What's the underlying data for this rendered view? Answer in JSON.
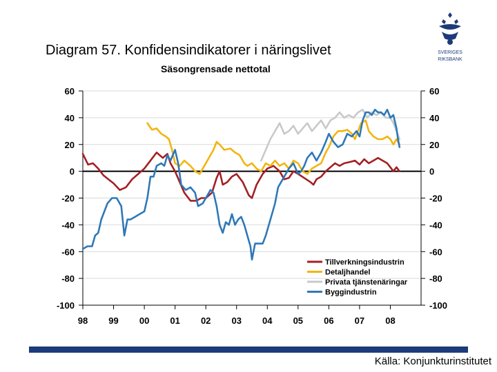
{
  "header": {
    "title": "Diagram 57. Konfidensindikatorer i näringslivet",
    "subtitle": "Säsongrensade nettotal"
  },
  "logo": {
    "line1": "SVERIGES",
    "line2": "RIKSBANK"
  },
  "footer": {
    "source": "Källa: Konjunkturinstitutet"
  },
  "chart_data": {
    "type": "line",
    "title": "Diagram 57. Konfidensindikatorer i näringslivet",
    "subtitle": "Säsongrensade nettotal",
    "xlabel": "",
    "ylabel": "",
    "xlim": [
      1998,
      2009
    ],
    "ylim": [
      -100,
      60
    ],
    "yticks": [
      60,
      40,
      20,
      0,
      -20,
      -40,
      -60,
      -80,
      -100
    ],
    "ytick_labels": [
      "60",
      "40",
      "20",
      "0",
      "-20",
      "-40",
      "-60",
      "-80",
      "-100"
    ],
    "xtick_values": [
      1998,
      1999,
      2000,
      2001,
      2002,
      2003,
      2004,
      2005,
      2006,
      2007,
      2008
    ],
    "xtick_labels": [
      "98",
      "99",
      "00",
      "01",
      "02",
      "03",
      "04",
      "05",
      "06",
      "07",
      "08"
    ],
    "legend_position": "bottom-right",
    "zero_line": true,
    "series": [
      {
        "name": "Tillverkningsindustrin",
        "color": "#a31f24",
        "points": [
          [
            1998.0,
            13
          ],
          [
            1998.17,
            5
          ],
          [
            1998.33,
            6
          ],
          [
            1998.5,
            2
          ],
          [
            1998.67,
            -3
          ],
          [
            1998.83,
            -6
          ],
          [
            1999.0,
            -9
          ],
          [
            1999.2,
            -14
          ],
          [
            1999.4,
            -12
          ],
          [
            1999.6,
            -6
          ],
          [
            1999.8,
            -2
          ],
          [
            2000.0,
            2
          ],
          [
            2000.2,
            8
          ],
          [
            2000.4,
            14
          ],
          [
            2000.6,
            10
          ],
          [
            2000.75,
            13
          ],
          [
            2000.85,
            6
          ],
          [
            2001.0,
            0
          ],
          [
            2001.15,
            -8
          ],
          [
            2001.3,
            -16
          ],
          [
            2001.5,
            -22
          ],
          [
            2001.7,
            -22
          ],
          [
            2001.85,
            -20
          ],
          [
            2002.0,
            -20
          ],
          [
            2002.2,
            -16
          ],
          [
            2002.35,
            -5
          ],
          [
            2002.45,
            0
          ],
          [
            2002.55,
            -10
          ],
          [
            2002.7,
            -8
          ],
          [
            2002.85,
            -4
          ],
          [
            2003.0,
            -2
          ],
          [
            2003.2,
            -8
          ],
          [
            2003.4,
            -18
          ],
          [
            2003.5,
            -20
          ],
          [
            2003.65,
            -10
          ],
          [
            2003.85,
            -2
          ],
          [
            2004.0,
            2
          ],
          [
            2004.2,
            4
          ],
          [
            2004.4,
            0
          ],
          [
            2004.55,
            -6
          ],
          [
            2004.7,
            -5
          ],
          [
            2004.85,
            0
          ],
          [
            2005.0,
            -2
          ],
          [
            2005.2,
            -5
          ],
          [
            2005.4,
            -8
          ],
          [
            2005.5,
            -10
          ],
          [
            2005.6,
            -6
          ],
          [
            2005.75,
            -4
          ],
          [
            2005.9,
            0
          ],
          [
            2006.05,
            3
          ],
          [
            2006.2,
            6
          ],
          [
            2006.35,
            4
          ],
          [
            2006.5,
            6
          ],
          [
            2006.7,
            7
          ],
          [
            2006.85,
            8
          ],
          [
            2007.0,
            5
          ],
          [
            2007.15,
            9
          ],
          [
            2007.3,
            6
          ],
          [
            2007.45,
            8
          ],
          [
            2007.6,
            10
          ],
          [
            2007.75,
            8
          ],
          [
            2007.9,
            6
          ],
          [
            2008.0,
            3
          ],
          [
            2008.1,
            0
          ],
          [
            2008.2,
            3
          ],
          [
            2008.3,
            0
          ]
        ]
      },
      {
        "name": "Detaljhandel",
        "color": "#f2b50f",
        "points": [
          [
            2000.1,
            36
          ],
          [
            2000.25,
            31
          ],
          [
            2000.4,
            32
          ],
          [
            2000.55,
            28
          ],
          [
            2000.7,
            26
          ],
          [
            2000.8,
            24
          ],
          [
            2000.9,
            16
          ],
          [
            2001.0,
            6
          ],
          [
            2001.15,
            4
          ],
          [
            2001.3,
            8
          ],
          [
            2001.5,
            4
          ],
          [
            2001.65,
            0
          ],
          [
            2001.8,
            -2
          ],
          [
            2001.95,
            4
          ],
          [
            2002.1,
            10
          ],
          [
            2002.25,
            16
          ],
          [
            2002.35,
            22
          ],
          [
            2002.45,
            20
          ],
          [
            2002.6,
            16
          ],
          [
            2002.8,
            17
          ],
          [
            2002.95,
            14
          ],
          [
            2003.1,
            12
          ],
          [
            2003.25,
            6
          ],
          [
            2003.35,
            4
          ],
          [
            2003.5,
            6
          ],
          [
            2003.65,
            2
          ],
          [
            2003.8,
            0
          ],
          [
            2003.95,
            6
          ],
          [
            2004.1,
            4
          ],
          [
            2004.25,
            8
          ],
          [
            2004.4,
            4
          ],
          [
            2004.55,
            6
          ],
          [
            2004.7,
            2
          ],
          [
            2004.85,
            8
          ],
          [
            2005.0,
            6
          ],
          [
            2005.15,
            0
          ],
          [
            2005.3,
            -2
          ],
          [
            2005.45,
            2
          ],
          [
            2005.6,
            4
          ],
          [
            2005.75,
            6
          ],
          [
            2005.9,
            14
          ],
          [
            2006.0,
            18
          ],
          [
            2006.15,
            26
          ],
          [
            2006.3,
            30
          ],
          [
            2006.45,
            30
          ],
          [
            2006.6,
            31
          ],
          [
            2006.75,
            28
          ],
          [
            2006.85,
            24
          ],
          [
            2006.95,
            30
          ],
          [
            2007.05,
            36
          ],
          [
            2007.2,
            38
          ],
          [
            2007.3,
            30
          ],
          [
            2007.45,
            26
          ],
          [
            2007.6,
            24
          ],
          [
            2007.75,
            24
          ],
          [
            2007.9,
            26
          ],
          [
            2008.0,
            24
          ],
          [
            2008.1,
            20
          ],
          [
            2008.2,
            24
          ],
          [
            2008.3,
            20
          ]
        ]
      },
      {
        "name": "Privata tjänstenäringar",
        "color": "#c9c9c9",
        "points": [
          [
            2003.8,
            8
          ],
          [
            2003.95,
            16
          ],
          [
            2004.1,
            24
          ],
          [
            2004.25,
            30
          ],
          [
            2004.4,
            36
          ],
          [
            2004.55,
            28
          ],
          [
            2004.7,
            30
          ],
          [
            2004.85,
            34
          ],
          [
            2005.0,
            28
          ],
          [
            2005.15,
            32
          ],
          [
            2005.3,
            36
          ],
          [
            2005.45,
            30
          ],
          [
            2005.6,
            34
          ],
          [
            2005.75,
            38
          ],
          [
            2005.9,
            32
          ],
          [
            2006.05,
            38
          ],
          [
            2006.2,
            40
          ],
          [
            2006.35,
            44
          ],
          [
            2006.5,
            40
          ],
          [
            2006.65,
            42
          ],
          [
            2006.8,
            40
          ],
          [
            2006.95,
            44
          ],
          [
            2007.1,
            46
          ],
          [
            2007.25,
            40
          ],
          [
            2007.4,
            44
          ],
          [
            2007.55,
            42
          ],
          [
            2007.7,
            44
          ],
          [
            2007.85,
            40
          ],
          [
            2008.0,
            40
          ],
          [
            2008.1,
            36
          ],
          [
            2008.2,
            30
          ],
          [
            2008.3,
            24
          ]
        ]
      },
      {
        "name": "Byggindustrin",
        "color": "#2f78b7",
        "points": [
          [
            1998.0,
            -58
          ],
          [
            1998.15,
            -56
          ],
          [
            1998.3,
            -56
          ],
          [
            1998.4,
            -48
          ],
          [
            1998.5,
            -46
          ],
          [
            1998.6,
            -36
          ],
          [
            1998.7,
            -30
          ],
          [
            1998.8,
            -24
          ],
          [
            1998.95,
            -20
          ],
          [
            1999.1,
            -20
          ],
          [
            1999.25,
            -26
          ],
          [
            1999.35,
            -48
          ],
          [
            1999.45,
            -36
          ],
          [
            1999.55,
            -36
          ],
          [
            1999.7,
            -34
          ],
          [
            1999.85,
            -32
          ],
          [
            2000.0,
            -30
          ],
          [
            2000.1,
            -20
          ],
          [
            2000.2,
            -4
          ],
          [
            2000.3,
            -4
          ],
          [
            2000.4,
            4
          ],
          [
            2000.55,
            6
          ],
          [
            2000.65,
            4
          ],
          [
            2000.75,
            12
          ],
          [
            2000.85,
            8
          ],
          [
            2001.0,
            16
          ],
          [
            2001.1,
            6
          ],
          [
            2001.2,
            -10
          ],
          [
            2001.35,
            -14
          ],
          [
            2001.5,
            -12
          ],
          [
            2001.65,
            -16
          ],
          [
            2001.75,
            -26
          ],
          [
            2001.9,
            -24
          ],
          [
            2002.0,
            -20
          ],
          [
            2002.15,
            -14
          ],
          [
            2002.25,
            -16
          ],
          [
            2002.35,
            -26
          ],
          [
            2002.45,
            -40
          ],
          [
            2002.55,
            -46
          ],
          [
            2002.65,
            -38
          ],
          [
            2002.75,
            -40
          ],
          [
            2002.85,
            -32
          ],
          [
            2002.95,
            -40
          ],
          [
            2003.05,
            -36
          ],
          [
            2003.15,
            -34
          ],
          [
            2003.25,
            -40
          ],
          [
            2003.35,
            -48
          ],
          [
            2003.45,
            -56
          ],
          [
            2003.5,
            -66
          ],
          [
            2003.6,
            -54
          ],
          [
            2003.7,
            -54
          ],
          [
            2003.85,
            -54
          ],
          [
            2003.95,
            -48
          ],
          [
            2004.05,
            -40
          ],
          [
            2004.15,
            -32
          ],
          [
            2004.25,
            -24
          ],
          [
            2004.35,
            -12
          ],
          [
            2004.45,
            -8
          ],
          [
            2004.55,
            -4
          ],
          [
            2004.7,
            2
          ],
          [
            2004.85,
            6
          ],
          [
            2005.0,
            -2
          ],
          [
            2005.1,
            0
          ],
          [
            2005.2,
            4
          ],
          [
            2005.3,
            10
          ],
          [
            2005.45,
            14
          ],
          [
            2005.6,
            8
          ],
          [
            2005.75,
            14
          ],
          [
            2005.9,
            22
          ],
          [
            2006.0,
            28
          ],
          [
            2006.15,
            22
          ],
          [
            2006.3,
            18
          ],
          [
            2006.45,
            20
          ],
          [
            2006.6,
            28
          ],
          [
            2006.75,
            26
          ],
          [
            2006.9,
            30
          ],
          [
            2007.0,
            26
          ],
          [
            2007.1,
            38
          ],
          [
            2007.2,
            44
          ],
          [
            2007.3,
            44
          ],
          [
            2007.4,
            42
          ],
          [
            2007.5,
            46
          ],
          [
            2007.6,
            44
          ],
          [
            2007.7,
            44
          ],
          [
            2007.8,
            42
          ],
          [
            2007.9,
            46
          ],
          [
            2008.0,
            40
          ],
          [
            2008.1,
            42
          ],
          [
            2008.2,
            32
          ],
          [
            2008.25,
            24
          ],
          [
            2008.3,
            18
          ]
        ]
      }
    ]
  }
}
